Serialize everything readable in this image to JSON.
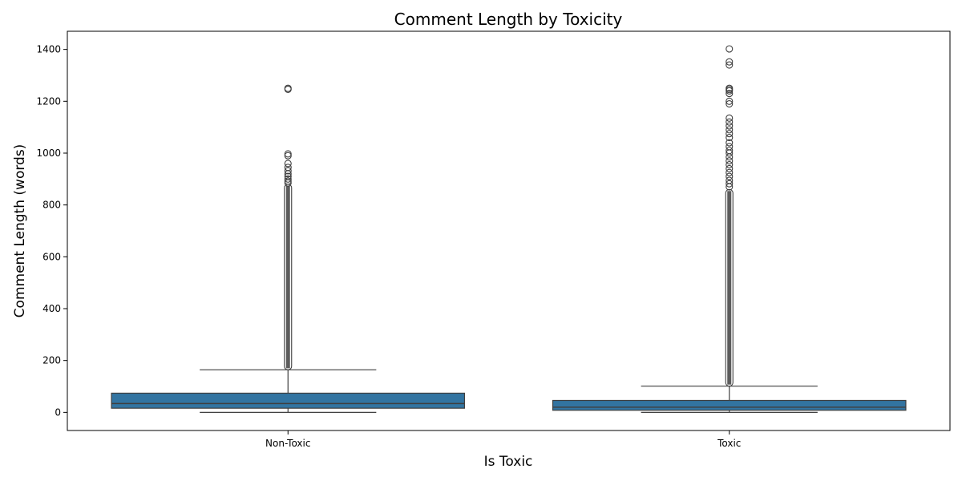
{
  "chart_data": {
    "type": "box",
    "title": "Comment Length by Toxicity",
    "xlabel": "Is Toxic",
    "ylabel": "Comment Length (words)",
    "ylim": [
      -70,
      1470
    ],
    "yticks": [
      0,
      200,
      400,
      600,
      800,
      1000,
      1200,
      1400
    ],
    "box_color": "#3274a1",
    "edge_color": "#3f3f3f",
    "categories": [
      "Non-Toxic",
      "Toxic"
    ],
    "boxes": [
      {
        "name": "Non-Toxic",
        "whisker_low": 0,
        "q1": 16,
        "median": 34,
        "q3": 74,
        "whisker_high": 164,
        "outlier_band": [
          164,
          880
        ],
        "outliers": [
          885,
          892,
          900,
          910,
          920,
          932,
          945,
          960,
          990,
          997,
          1246,
          1250
        ]
      },
      {
        "name": "Toxic",
        "whisker_low": 0,
        "q1": 8,
        "median": 20,
        "q3": 46,
        "whisker_high": 101,
        "outlier_band": [
          101,
          860
        ],
        "outliers": [
          870,
          882,
          895,
          910,
          925,
          940,
          955,
          970,
          985,
          1000,
          1010,
          1025,
          1040,
          1060,
          1075,
          1090,
          1105,
          1120,
          1135,
          1190,
          1200,
          1230,
          1240,
          1245,
          1250,
          1340,
          1352,
          1402
        ]
      }
    ]
  }
}
